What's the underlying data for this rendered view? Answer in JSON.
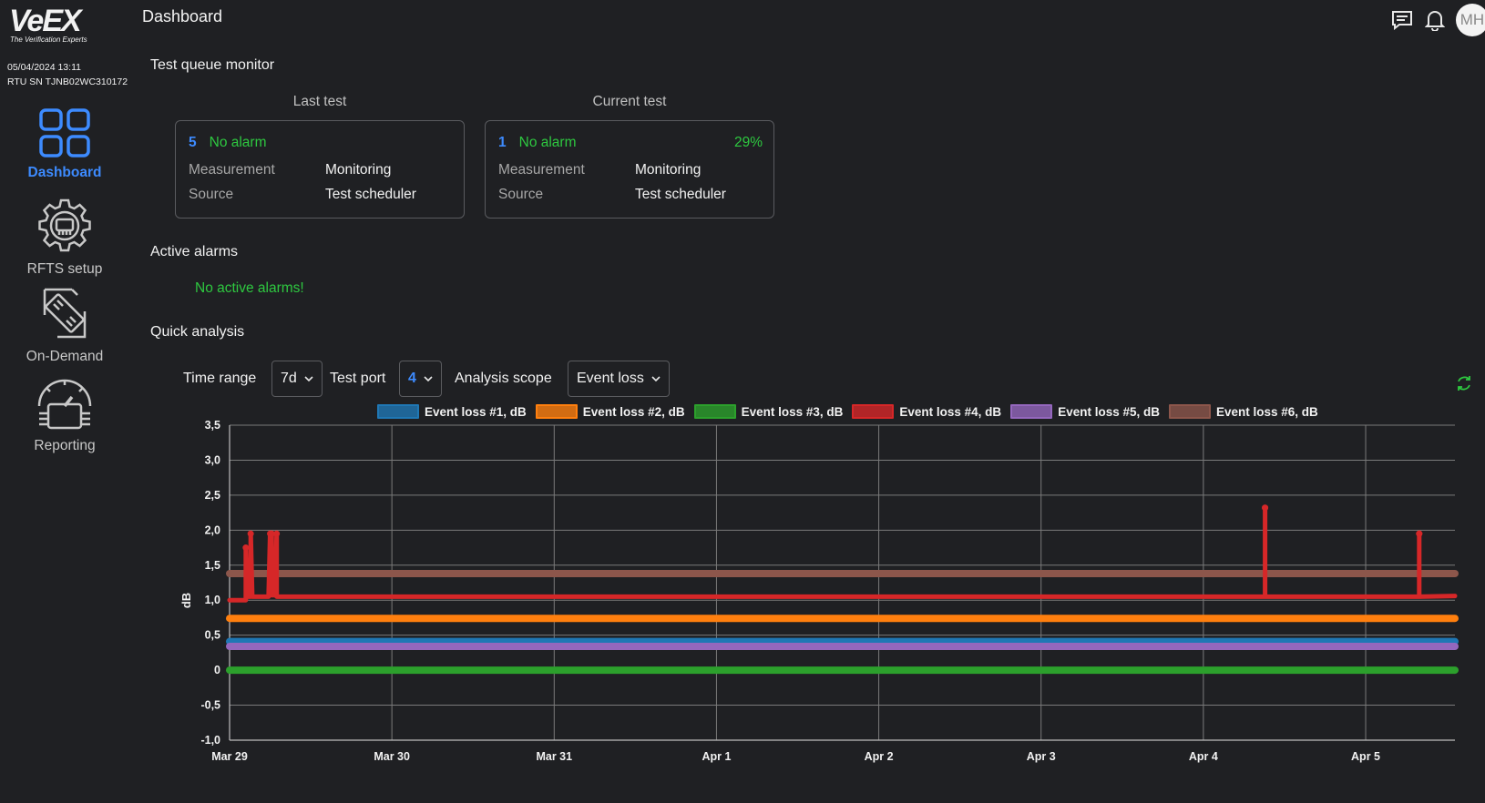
{
  "brand": {
    "logo_text": "VeEX",
    "tagline": "The Verification Experts"
  },
  "rtu": {
    "datetime": "05/04/2024 13:11",
    "serial": "RTU SN TJNB02WC310172"
  },
  "nav": [
    {
      "label": "Dashboard",
      "icon": "dashboard-grid-icon",
      "active": true
    },
    {
      "label": "RFTS setup",
      "icon": "gear-icon",
      "active": false
    },
    {
      "label": "On-Demand",
      "icon": "on-demand-icon",
      "active": false
    },
    {
      "label": "Reporting",
      "icon": "gauge-icon",
      "active": false
    }
  ],
  "header": {
    "title": "Dashboard",
    "user_initials": "MH"
  },
  "queue": {
    "title": "Test queue monitor",
    "last": {
      "heading": "Last test",
      "number": "5",
      "status": "No alarm",
      "progress": "",
      "measurement_label": "Measurement",
      "measurement_value": "Monitoring",
      "source_label": "Source",
      "source_value": "Test scheduler"
    },
    "current": {
      "heading": "Current test",
      "number": "1",
      "status": "No alarm",
      "progress": "29%",
      "measurement_label": "Measurement",
      "measurement_value": "Monitoring",
      "source_label": "Source",
      "source_value": "Test scheduler"
    }
  },
  "alarms": {
    "title": "Active alarms",
    "message": "No active alarms!"
  },
  "analysis": {
    "title": "Quick analysis",
    "time_range_label": "Time range",
    "time_range_value": "7d",
    "test_port_label": "Test port",
    "test_port_value": "4",
    "scope_label": "Analysis scope",
    "scope_value": "Event loss"
  },
  "colors": {
    "accent": "#3d8bff",
    "ok": "#2ec840",
    "background": "#1f2023"
  },
  "chart_data": {
    "type": "line",
    "ylabel": "dB",
    "ylim": [
      -1.0,
      3.5
    ],
    "yticks": [
      "3,5",
      "3,0",
      "2,5",
      "2,0",
      "1,5",
      "1,0",
      "0,5",
      "0",
      "-0,5",
      "-1,0"
    ],
    "xticks": [
      "Mar 29",
      "Mar 30",
      "Mar 31",
      "Apr 1",
      "Apr 2",
      "Apr 3",
      "Apr 4",
      "Apr 5"
    ],
    "xlim": [
      0,
      7.55
    ],
    "grid": true,
    "legend": "top",
    "series": [
      {
        "name": "Event loss #1, dB",
        "color": "#1f77b4",
        "x": [
          0,
          7.55
        ],
        "values": [
          0.41,
          0.41
        ]
      },
      {
        "name": "Event loss #2, dB",
        "color": "#ff7f0e",
        "x": [
          0,
          7.55
        ],
        "values": [
          0.74,
          0.74
        ]
      },
      {
        "name": "Event loss #3, dB",
        "color": "#2ca02c",
        "x": [
          0,
          7.55
        ],
        "values": [
          0.0,
          0.0
        ]
      },
      {
        "name": "Event loss #4, dB",
        "color": "#d62728",
        "x": [
          0,
          0.1,
          0.1,
          0.11,
          0.13,
          0.13,
          0.14,
          0.24,
          0.25,
          0.26,
          0.26,
          0.28,
          0.29,
          0.29,
          6.38,
          6.38,
          6.38,
          6.38,
          7.33,
          7.33,
          7.33,
          7.33,
          7.55
        ],
        "values": [
          1.0,
          1.0,
          1.75,
          1.05,
          1.05,
          1.95,
          1.05,
          1.05,
          1.95,
          1.95,
          1.07,
          1.07,
          1.95,
          1.05,
          1.05,
          2.32,
          2.32,
          1.05,
          1.05,
          1.95,
          1.95,
          1.05,
          1.06
        ]
      },
      {
        "name": "Event loss #5, dB",
        "color": "#9467bd",
        "x": [
          0,
          7.55
        ],
        "values": [
          0.34,
          0.34
        ]
      },
      {
        "name": "Event loss #6, dB",
        "color": "#8c564b",
        "x": [
          0,
          7.55
        ],
        "values": [
          1.38,
          1.38
        ]
      }
    ]
  }
}
